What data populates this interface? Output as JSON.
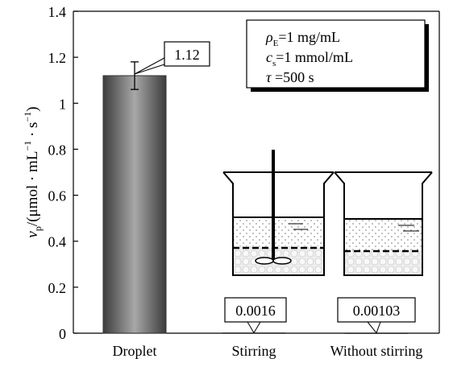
{
  "chart_data": {
    "type": "bar",
    "categories": [
      "Droplet",
      "Stirring",
      "Without stirring"
    ],
    "values": [
      1.12,
      0.0016,
      0.00103
    ],
    "error_bars": [
      0.06,
      0,
      0
    ],
    "data_labels": [
      "1.12",
      "0.0016",
      "0.00103"
    ],
    "ylim": [
      0,
      1.4
    ],
    "yticks": [
      "0",
      "0.2",
      "0.4",
      "0.6",
      "0.8",
      "1",
      "1.2",
      "1.4"
    ],
    "ylabel": {
      "main": "v",
      "sub": "p",
      "rest": "/(μmol · mL",
      "sup1": "−1",
      "mid": " · s",
      "sup2": "−1",
      "close": ")"
    },
    "grid": false,
    "bar_color": "#555555",
    "annotation": {
      "line1": {
        "main": "ρ",
        "sub": "E",
        "rest": "=1 mg/mL"
      },
      "line2": {
        "main": "c",
        "sub": "s",
        "rest": "=1 mmol/mL"
      },
      "line3": {
        "main": "τ",
        "rest": " =500 s"
      }
    }
  }
}
